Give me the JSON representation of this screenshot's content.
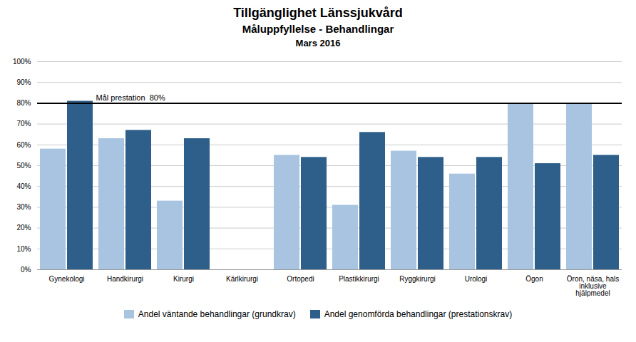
{
  "chart_data": {
    "type": "bar",
    "title": "Tillgänglighet Länssjukvård",
    "subtitle": [
      "Måluppfyllelse - Behandlingar",
      "Mars 2016"
    ],
    "categories": [
      "Gynekologi",
      "Handkirurgi",
      "Kirurgi",
      "Kärlkirurgi",
      "Ortopedi",
      "Plastikkirurgi",
      "Ryggkirurgi",
      "Urologi",
      "Ögon",
      "Öron, näsa, hals\ninklusive\nhjälpmedel"
    ],
    "series": [
      {
        "name": "Andel väntande behandlingar (grundkrav)",
        "color": "#a8c4e0",
        "values": [
          0.58,
          0.63,
          0.33,
          0.0,
          0.55,
          0.31,
          0.57,
          0.46,
          0.8,
          0.8
        ]
      },
      {
        "name": "Andel genomförda behandlingar (prestationskrav)",
        "color": "#2e5f8a",
        "values": [
          0.81,
          0.67,
          0.63,
          0.0,
          0.54,
          0.66,
          0.54,
          0.54,
          0.51,
          0.55
        ]
      }
    ],
    "annotations": [
      {
        "type": "hline",
        "y": 0.8,
        "text": "Mål prestation  80%"
      }
    ],
    "ylim": [
      0,
      1.0
    ],
    "yticks": [
      {
        "value": 0.0,
        "label": "0%"
      },
      {
        "value": 0.1,
        "label": "10%"
      },
      {
        "value": 0.2,
        "label": "20%"
      },
      {
        "value": 0.3,
        "label": "30%"
      },
      {
        "value": 0.4,
        "label": "40%"
      },
      {
        "value": 0.5,
        "label": "50%"
      },
      {
        "value": 0.6,
        "label": "60%"
      },
      {
        "value": 0.7,
        "label": "70%"
      },
      {
        "value": 0.8,
        "label": "80%"
      },
      {
        "value": 0.9,
        "label": "90%"
      },
      {
        "value": 1.0,
        "label": "100%"
      }
    ],
    "grid": true,
    "legend": "bottom"
  }
}
